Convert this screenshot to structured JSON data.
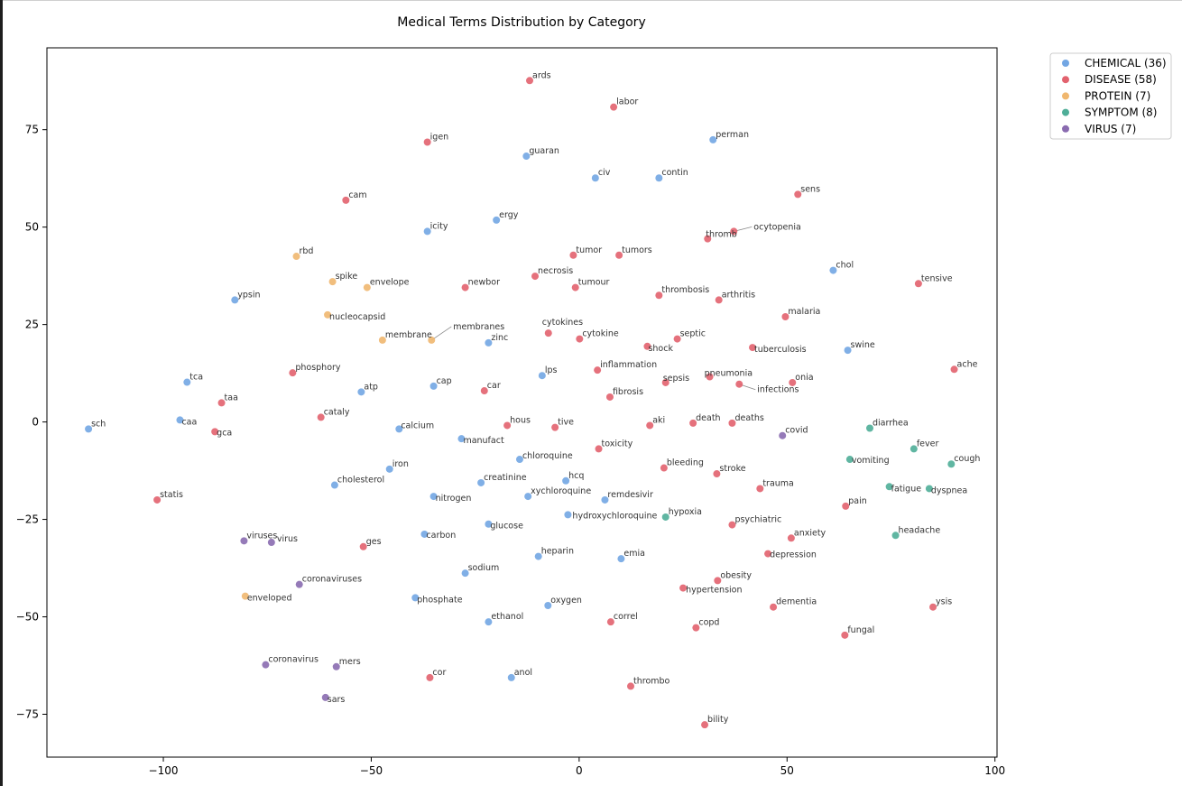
{
  "chart_data": {
    "type": "scatter",
    "title": "Medical Terms Distribution by Category",
    "xlim": [
      -128,
      100.5
    ],
    "ylim": [
      -86,
      96
    ],
    "xticks": [
      -100,
      -50,
      0,
      50,
      100
    ],
    "yticks": [
      -75,
      -50,
      -25,
      0,
      25,
      50,
      75
    ],
    "xtick_labels": [
      "−100",
      "−50",
      "0",
      "50",
      "100"
    ],
    "ytick_labels": [
      "−75",
      "−50",
      "−25",
      "0",
      "25",
      "50",
      "75"
    ],
    "grid": false,
    "legend_position": "outside top-right",
    "series": [
      {
        "name": "CHEMICAL (36)",
        "color": "#72a6e3",
        "points": [
          {
            "label": "perman",
            "x": 32.2,
            "y": 72.4
          },
          {
            "label": "guaran",
            "x": -12.7,
            "y": 68.2
          },
          {
            "label": "civ",
            "x": 3.9,
            "y": 62.6
          },
          {
            "label": "contin",
            "x": 19.2,
            "y": 62.6
          },
          {
            "label": "ergy",
            "x": -19.9,
            "y": 51.8
          },
          {
            "label": "icity",
            "x": -36.5,
            "y": 48.9
          },
          {
            "label": "chol",
            "x": 61.1,
            "y": 38.9
          },
          {
            "label": "ypsin",
            "x": -82.8,
            "y": 31.3
          },
          {
            "label": "zinc",
            "x": -21.8,
            "y": 20.3
          },
          {
            "label": "swine",
            "x": 64.6,
            "y": 18.4
          },
          {
            "label": "lps",
            "x": -8.9,
            "y": 11.9
          },
          {
            "label": "tca",
            "x": -94.3,
            "y": 10.2
          },
          {
            "label": "cap",
            "x": -35.0,
            "y": 9.2
          },
          {
            "label": "atp",
            "x": -52.4,
            "y": 7.7
          },
          {
            "label": "caa",
            "x": -96.0,
            "y": 0.5
          },
          {
            "label": "sch",
            "x": -118.0,
            "y": -1.8
          },
          {
            "label": "calcium",
            "x": -43.3,
            "y": -1.8
          },
          {
            "label": "manufact",
            "x": -28.3,
            "y": -4.3
          },
          {
            "label": "chloroquine",
            "x": -14.3,
            "y": -9.6
          },
          {
            "label": "iron",
            "x": -45.6,
            "y": -12.1
          },
          {
            "label": "hcq",
            "x": -3.2,
            "y": -15.1
          },
          {
            "label": "creatinine",
            "x": -23.6,
            "y": -15.6
          },
          {
            "label": "cholesterol",
            "x": -58.8,
            "y": -16.2
          },
          {
            "label": "xychloroquine",
            "x": -12.3,
            "y": -19.1
          },
          {
            "label": "nitrogen",
            "x": -35.0,
            "y": -19.1
          },
          {
            "label": "remdesivir",
            "x": 6.2,
            "y": -20.0
          },
          {
            "label": "hydroxychloroquine",
            "x": -2.7,
            "y": -23.8
          },
          {
            "label": "glucose",
            "x": -21.8,
            "y": -26.2
          },
          {
            "label": "carbon",
            "x": -37.2,
            "y": -28.8
          },
          {
            "label": "heparin",
            "x": -9.8,
            "y": -34.5
          },
          {
            "label": "emia",
            "x": 10.1,
            "y": -35.1
          },
          {
            "label": "sodium",
            "x": -27.4,
            "y": -38.8
          },
          {
            "label": "phosphate",
            "x": -39.4,
            "y": -45.1
          },
          {
            "label": "oxygen",
            "x": -7.5,
            "y": -47.1
          },
          {
            "label": "ethanol",
            "x": -21.8,
            "y": -51.3
          },
          {
            "label": "anol",
            "x": -16.3,
            "y": -65.6
          }
        ]
      },
      {
        "name": "DISEASE (58)",
        "color": "#e2626e",
        "points": [
          {
            "label": "ards",
            "x": -11.9,
            "y": 87.6
          },
          {
            "label": "labor",
            "x": 8.3,
            "y": 80.8
          },
          {
            "label": "igen",
            "x": -36.5,
            "y": 71.8
          },
          {
            "label": "cam",
            "x": -56.1,
            "y": 56.9
          },
          {
            "label": "sens",
            "x": 52.6,
            "y": 58.4
          },
          {
            "label": "ocytopenia",
            "x": 37.2,
            "y": 48.9
          },
          {
            "label": "thromb",
            "x": 30.9,
            "y": 47.0
          },
          {
            "label": "tumor",
            "x": -1.4,
            "y": 42.8
          },
          {
            "label": "tumors",
            "x": 9.6,
            "y": 42.8
          },
          {
            "label": "necrosis",
            "x": -10.6,
            "y": 37.4
          },
          {
            "label": "tensive",
            "x": 81.6,
            "y": 35.5
          },
          {
            "label": "newbor",
            "x": -27.4,
            "y": 34.5
          },
          {
            "label": "tumour",
            "x": -0.9,
            "y": 34.5
          },
          {
            "label": "thrombosis",
            "x": 19.2,
            "y": 32.5
          },
          {
            "label": "arthritis",
            "x": 33.6,
            "y": 31.3
          },
          {
            "label": "malaria",
            "x": 49.6,
            "y": 27.0
          },
          {
            "label": "cytokines",
            "x": -7.4,
            "y": 22.8
          },
          {
            "label": "cytokine",
            "x": 0.1,
            "y": 21.3
          },
          {
            "label": "septic",
            "x": 23.6,
            "y": 21.3
          },
          {
            "label": "shock",
            "x": 16.4,
            "y": 19.4
          },
          {
            "label": "tuberculosis",
            "x": 41.7,
            "y": 19.1
          },
          {
            "label": "phosphory",
            "x": -68.9,
            "y": 12.6
          },
          {
            "label": "inflammation",
            "x": 4.4,
            "y": 13.3
          },
          {
            "label": "pneumonia",
            "x": 31.4,
            "y": 11.6
          },
          {
            "label": "sepsis",
            "x": 20.8,
            "y": 10.1
          },
          {
            "label": "infections",
            "x": 38.5,
            "y": 9.7
          },
          {
            "label": "onia",
            "x": 51.3,
            "y": 10.1
          },
          {
            "label": "ache",
            "x": 90.2,
            "y": 13.5
          },
          {
            "label": "car",
            "x": -22.8,
            "y": 8.0
          },
          {
            "label": "fibrosis",
            "x": 7.4,
            "y": 6.4
          },
          {
            "label": "taa",
            "x": -86.0,
            "y": 4.9
          },
          {
            "label": "cataly",
            "x": -62.1,
            "y": 1.2
          },
          {
            "label": "hous",
            "x": -17.3,
            "y": -0.9
          },
          {
            "label": "tive",
            "x": -5.8,
            "y": -1.4
          },
          {
            "label": "aki",
            "x": 17.0,
            "y": -0.9
          },
          {
            "label": "death",
            "x": 27.4,
            "y": -0.3
          },
          {
            "label": "deaths",
            "x": 36.8,
            "y": -0.3
          },
          {
            "label": "gca",
            "x": -87.6,
            "y": -2.5
          },
          {
            "label": "toxicity",
            "x": 4.7,
            "y": -6.9
          },
          {
            "label": "bleeding",
            "x": 20.4,
            "y": -11.8
          },
          {
            "label": "stroke",
            "x": 33.1,
            "y": -13.3
          },
          {
            "label": "trauma",
            "x": 43.5,
            "y": -17.1
          },
          {
            "label": "statis",
            "x": -101.5,
            "y": -20.0
          },
          {
            "label": "pain",
            "x": 64.1,
            "y": -21.6
          },
          {
            "label": "psychiatric",
            "x": 36.8,
            "y": -26.4
          },
          {
            "label": "anxiety",
            "x": 51.0,
            "y": -29.8
          },
          {
            "label": "ges",
            "x": -51.9,
            "y": -32.0
          },
          {
            "label": "depression",
            "x": 45.4,
            "y": -33.8
          },
          {
            "label": "obesity",
            "x": 33.3,
            "y": -40.7
          },
          {
            "label": "hypertension",
            "x": 25.0,
            "y": -42.6
          },
          {
            "label": "dementia",
            "x": 46.7,
            "y": -47.5
          },
          {
            "label": "ysis",
            "x": 85.1,
            "y": -47.5
          },
          {
            "label": "correl",
            "x": 7.6,
            "y": -51.3
          },
          {
            "label": "copd",
            "x": 28.1,
            "y": -52.8
          },
          {
            "label": "fungal",
            "x": 63.9,
            "y": -54.7
          },
          {
            "label": "cor",
            "x": -35.9,
            "y": -65.6
          },
          {
            "label": "thrombo",
            "x": 12.4,
            "y": -67.8
          },
          {
            "label": "bility",
            "x": 30.2,
            "y": -77.7
          }
        ]
      },
      {
        "name": "PROTEIN (7)",
        "color": "#f0b76f",
        "points": [
          {
            "label": "rbd",
            "x": -68.0,
            "y": 42.5
          },
          {
            "label": "spike",
            "x": -59.3,
            "y": 36.0
          },
          {
            "label": "envelope",
            "x": -51.0,
            "y": 34.5
          },
          {
            "label": "nucleocapsid",
            "x": -60.5,
            "y": 27.5
          },
          {
            "label": "membrane",
            "x": -47.3,
            "y": 21.0
          },
          {
            "label": "membranes",
            "x": -35.5,
            "y": 21.0
          },
          {
            "label": "enveloped",
            "x": -80.3,
            "y": -44.7
          }
        ]
      },
      {
        "name": "SYMPTOM (8)",
        "color": "#4fae98",
        "points": [
          {
            "label": "diarrhea",
            "x": 69.9,
            "y": -1.6
          },
          {
            "label": "fever",
            "x": 80.5,
            "y": -6.9
          },
          {
            "label": "cough",
            "x": 89.5,
            "y": -10.8
          },
          {
            "label": "vomiting",
            "x": 65.1,
            "y": -9.6
          },
          {
            "label": "fatigue",
            "x": 74.6,
            "y": -16.6
          },
          {
            "label": "dyspnea",
            "x": 84.2,
            "y": -17.1
          },
          {
            "label": "hypoxia",
            "x": 20.8,
            "y": -24.4
          },
          {
            "label": "headache",
            "x": 76.1,
            "y": -29.1
          }
        ]
      },
      {
        "name": "VIRUS (7)",
        "color": "#8a6bb0",
        "points": [
          {
            "label": "covid",
            "x": 48.9,
            "y": -3.5
          },
          {
            "label": "viruses",
            "x": -80.6,
            "y": -30.5
          },
          {
            "label": "virus",
            "x": -74.0,
            "y": -30.9
          },
          {
            "label": "coronaviruses",
            "x": -67.3,
            "y": -41.7
          },
          {
            "label": "coronavirus",
            "x": -75.4,
            "y": -62.3
          },
          {
            "label": "mers",
            "x": -58.4,
            "y": -62.8
          },
          {
            "label": "sars",
            "x": -61.0,
            "y": -70.7
          }
        ]
      }
    ]
  }
}
